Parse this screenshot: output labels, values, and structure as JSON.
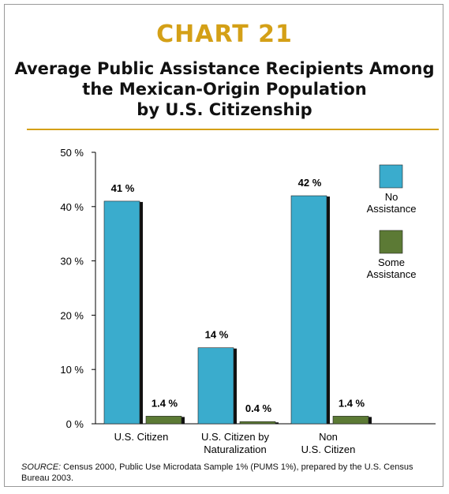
{
  "header": {
    "chart_number": "CHART 21",
    "title_lines": [
      "Average Public Assistance Recipients Among",
      "the Mexican-Origin Population",
      "by U.S. Citizenship"
    ]
  },
  "colors": {
    "accent": "#d4a017",
    "no_assistance": "#3aaccd",
    "some_assistance": "#5c7a35",
    "bar_shadow": "#111111"
  },
  "chart_data": {
    "type": "bar",
    "categories": [
      [
        "U.S. Citizen"
      ],
      [
        "U.S. Citizen by",
        "Naturalization"
      ],
      [
        "Non",
        "U.S. Citizen"
      ]
    ],
    "series": [
      {
        "name": "No Assistance",
        "legend_lines": [
          "No",
          "Assistance"
        ],
        "values": [
          41,
          14,
          42
        ],
        "labels": [
          "41 %",
          "14 %",
          "42 %"
        ]
      },
      {
        "name": "Some Assistance",
        "legend_lines": [
          "Some",
          "Assistance"
        ],
        "values": [
          1.4,
          0.4,
          1.4
        ],
        "labels": [
          "1.4 %",
          "0.4 %",
          "1.4 %"
        ]
      }
    ],
    "ylim": [
      0,
      50
    ],
    "yticks": [
      0,
      10,
      20,
      30,
      40,
      50
    ],
    "ytick_labels": [
      "0 %",
      "10 %",
      "20 %",
      "30 %",
      "40 %",
      "50 %"
    ],
    "legend_position": "right",
    "grid": false
  },
  "source": {
    "label": "SOURCE:",
    "text": " Census 2000, Public Use Microdata Sample 1% (PUMS 1%), prepared by the U.S. Census Bureau 2003."
  }
}
